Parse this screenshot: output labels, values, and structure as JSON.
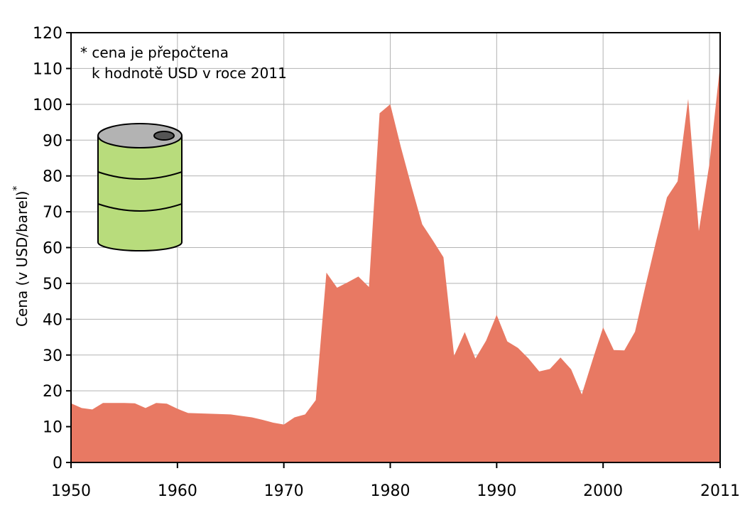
{
  "chart_data": {
    "type": "area",
    "ylabel": "Cena (v USD/barel)",
    "ylabel_mark": "*",
    "note": [
      "* cena je přepočtena",
      "k hodnotě USD v roce 2011"
    ],
    "xlim": [
      1950,
      2011
    ],
    "ylim": [
      0,
      120
    ],
    "x_ticks": [
      1950,
      1960,
      1970,
      1980,
      1990,
      2000,
      2011
    ],
    "y_ticks": [
      0,
      10,
      20,
      30,
      40,
      50,
      60,
      70,
      80,
      90,
      100,
      110,
      120
    ],
    "grid": true,
    "colors": {
      "fill": "#e87963",
      "grid": "#b3b3b3",
      "barrel_body": "#b8dc7c",
      "barrel_lid": "#b3b3b3"
    },
    "icon": "oil-barrel-icon",
    "x": [
      1950,
      1951,
      1952,
      1953,
      1954,
      1955,
      1956,
      1957,
      1958,
      1959,
      1960,
      1961,
      1962,
      1963,
      1964,
      1965,
      1966,
      1967,
      1968,
      1969,
      1970,
      1971,
      1972,
      1973,
      1974,
      1975,
      1976,
      1977,
      1978,
      1979,
      1980,
      1981,
      1982,
      1983,
      1984,
      1985,
      1986,
      1987,
      1988,
      1989,
      1990,
      1991,
      1992,
      1993,
      1994,
      1995,
      1996,
      1997,
      1998,
      1999,
      2000,
      2001,
      2002,
      2003,
      2004,
      2005,
      2006,
      2007,
      2008,
      2009,
      2010,
      2011
    ],
    "values": [
      16.5,
      15.2,
      14.8,
      16.6,
      16.6,
      16.6,
      16.5,
      15.2,
      16.6,
      16.4,
      15.0,
      13.8,
      13.7,
      13.6,
      13.5,
      13.4,
      13.0,
      12.6,
      11.9,
      11.1,
      10.6,
      12.6,
      13.4,
      17.4,
      53.0,
      48.8,
      50.3,
      51.9,
      49.0,
      97.5,
      100.0,
      88.0,
      77.0,
      66.5,
      62.0,
      57.3,
      29.8,
      36.4,
      29.0,
      34.0,
      41.2,
      33.8,
      32.0,
      29.0,
      25.4,
      26.1,
      29.3,
      26.0,
      19.0,
      28.5,
      37.7,
      31.4,
      31.3,
      36.5,
      49.5,
      62.0,
      74.0,
      78.5,
      101.5,
      64.6,
      83.5,
      111.0
    ]
  }
}
